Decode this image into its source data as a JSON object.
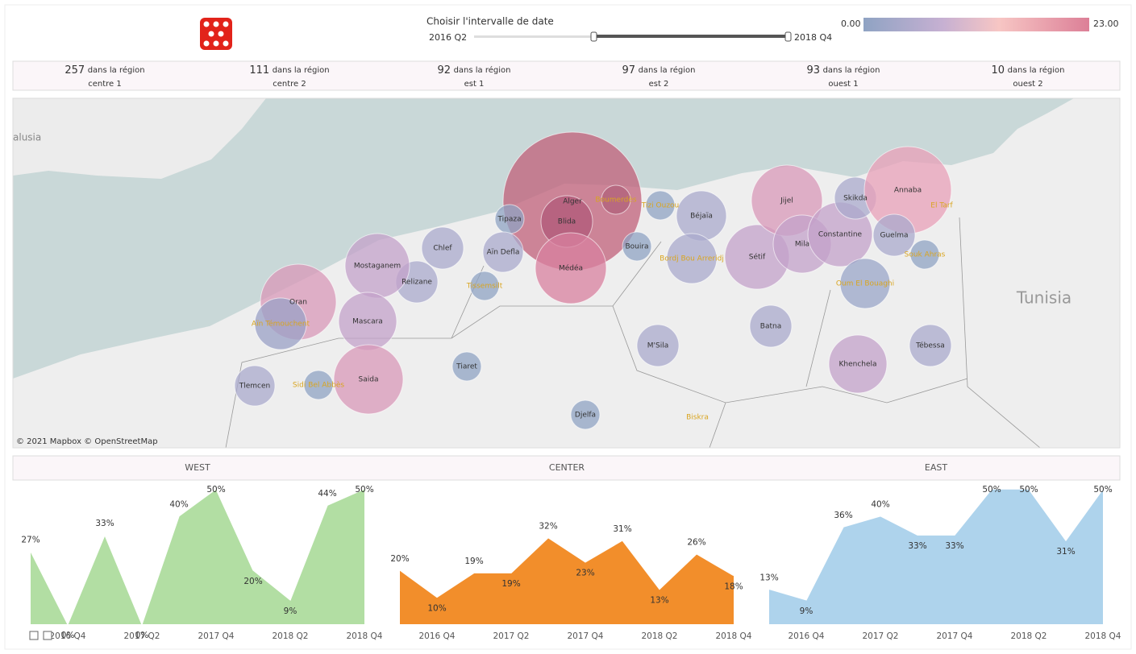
{
  "header": {
    "slider_label": "Choisir l'intervalle de date",
    "slider_start": "2016 Q2",
    "slider_end": "2018 Q4",
    "legend_min": "0.00",
    "legend_max": "23.00"
  },
  "kpis": [
    {
      "count": 257,
      "text": "dans la région",
      "region": "centre 1"
    },
    {
      "count": 111,
      "text": "dans la région",
      "region": "centre 2"
    },
    {
      "count": 92,
      "text": "dans la région",
      "region": "est 1"
    },
    {
      "count": 97,
      "text": "dans la région",
      "region": "est 2"
    },
    {
      "count": 93,
      "text": "dans la région",
      "region": "ouest 1"
    },
    {
      "count": 10,
      "text": "dans la région",
      "region": "ouest 2"
    }
  ],
  "map": {
    "cities": [
      "Alger",
      "Blida",
      "Médéa",
      "Boumerdès",
      "Tipaza",
      "Chlef",
      "Aïn Defla",
      "Relizane",
      "Mostaganem",
      "Oran",
      "Aïn Témouchent",
      "Mascara",
      "Saida",
      "Tlemcen",
      "Sidi Bel Abbès",
      "Tiaret",
      "Tissemsilt",
      "Djelfa",
      "M'Sila",
      "Bouira",
      "Tizi Ouzou",
      "Béjaïa",
      "Bordj Bou Arreridj",
      "Sétif",
      "Jijel",
      "Mila",
      "Constantine",
      "Skikda",
      "Annaba",
      "El Tarf",
      "Guelma",
      "Souk Ahras",
      "Oum El Bouaghi",
      "Batna",
      "Khenchela",
      "Tébessa",
      "Biskra"
    ],
    "countries": [
      "alusia",
      "Tunisia"
    ],
    "attribution": "© 2021 Mapbox © OpenStreetMap"
  },
  "charts": [
    {
      "type": "area",
      "title": "WEST",
      "categories": [
        null,
        "2016 Q4",
        null,
        "2017 Q2",
        null,
        "2017 Q4",
        null,
        "2018 Q2",
        null,
        "2018 Q4"
      ],
      "values": [
        27,
        0,
        33,
        0,
        40,
        50,
        20,
        9,
        44,
        50
      ],
      "value_labels": [
        "27%",
        "0%",
        "33%",
        "0%",
        "40%",
        "50%",
        "20%",
        "9%",
        "44%",
        "50%"
      ],
      "color": "#b2dea3",
      "ylim": [
        0,
        50
      ]
    },
    {
      "type": "area",
      "title": "CENTER",
      "categories": [
        null,
        "2016 Q4",
        null,
        "2017 Q2",
        null,
        "2017 Q4",
        null,
        "2018 Q2",
        null,
        "2018 Q4"
      ],
      "values": [
        20,
        10,
        19,
        19,
        32,
        23,
        31,
        13,
        26,
        18
      ],
      "value_labels": [
        "20%",
        "10%",
        "19%",
        "19%",
        "32%",
        "23%",
        "31%",
        "13%",
        "26%",
        "18%"
      ],
      "color": "#f28e2b",
      "ylim": [
        0,
        50
      ]
    },
    {
      "type": "area",
      "title": "EAST",
      "categories": [
        null,
        "2016 Q4",
        null,
        "2017 Q2",
        null,
        "2017 Q4",
        null,
        "2018 Q2",
        null,
        "2018 Q4"
      ],
      "values": [
        13,
        9,
        36,
        40,
        33,
        33,
        50,
        50,
        31,
        50
      ],
      "value_labels": [
        "13%",
        "9%",
        "36%",
        "40%",
        "33%",
        "33%",
        "50%",
        "50%",
        "31%",
        "50%"
      ],
      "color": "#aed3ec",
      "ylim": [
        0,
        50
      ]
    }
  ]
}
